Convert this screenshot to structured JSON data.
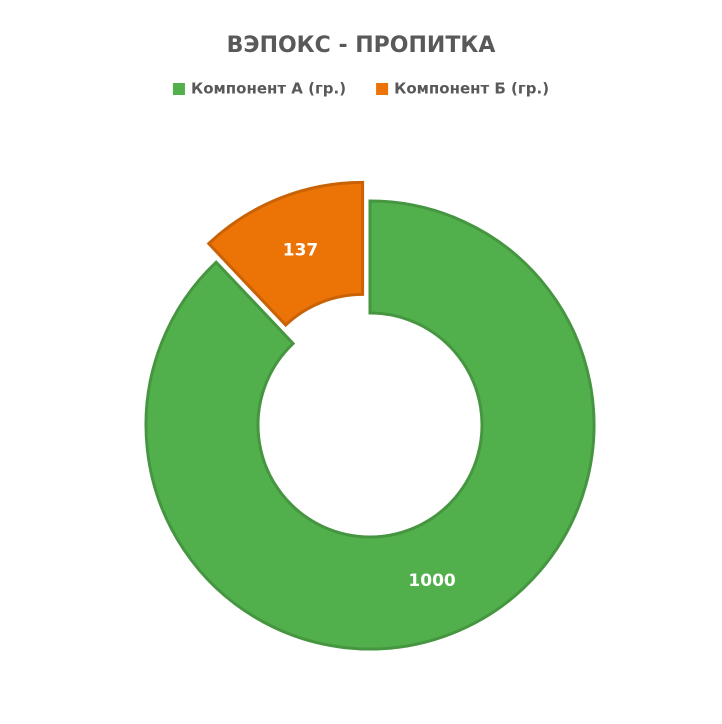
{
  "chart_data": {
    "type": "donut",
    "title": "ВЭПОКС - ПРОПИТКА",
    "categories": [
      "Компонент А (гр.)",
      "Компонент Б (гр.)"
    ],
    "values": [
      1000,
      137
    ],
    "colors": [
      "#52b04c",
      "#ec7306"
    ],
    "legend": "top"
  }
}
